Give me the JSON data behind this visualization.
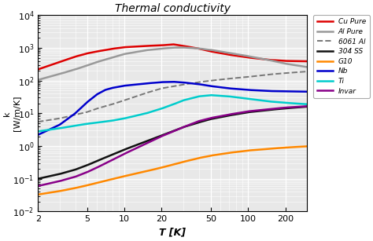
{
  "title": "Thermal conductivity",
  "xlabel": "T [K]",
  "ylabel": "k\n[W/m/K]",
  "xlim": [
    2,
    300
  ],
  "ylim": [
    0.01,
    10000
  ],
  "background_color": "#e8e8e8",
  "series": {
    "Cu Pure": {
      "color": "#dd0000",
      "linestyle": "-",
      "linewidth": 1.8,
      "T": [
        2,
        3,
        4,
        5,
        6,
        8,
        10,
        15,
        20,
        25,
        30,
        40,
        50,
        70,
        100,
        150,
        200,
        300
      ],
      "k": [
        220,
        370,
        540,
        680,
        780,
        940,
        1050,
        1150,
        1200,
        1280,
        1150,
        950,
        780,
        620,
        510,
        430,
        400,
        390
      ]
    },
    "Al Pure": {
      "color": "#999999",
      "linestyle": "-",
      "linewidth": 1.8,
      "T": [
        2,
        3,
        4,
        5,
        6,
        8,
        10,
        15,
        20,
        25,
        30,
        40,
        50,
        70,
        100,
        150,
        200,
        300
      ],
      "k": [
        105,
        160,
        220,
        290,
        370,
        510,
        650,
        850,
        950,
        1020,
        1030,
        960,
        870,
        700,
        560,
        420,
        330,
        260
      ]
    },
    "6061 Al": {
      "color": "#777777",
      "linestyle": "--",
      "linewidth": 1.4,
      "T": [
        2,
        3,
        4,
        5,
        6,
        8,
        10,
        15,
        20,
        30,
        40,
        50,
        70,
        100,
        150,
        200,
        300
      ],
      "k": [
        5.5,
        7.0,
        9.0,
        11.0,
        14.0,
        19.0,
        25.0,
        42.0,
        58.0,
        76.0,
        90.0,
        100.0,
        115.0,
        130.0,
        155.0,
        170.0,
        190.0
      ]
    },
    "304 SS": {
      "color": "#111111",
      "linestyle": "-",
      "linewidth": 1.8,
      "T": [
        2,
        3,
        4,
        5,
        6,
        8,
        10,
        15,
        20,
        30,
        40,
        50,
        70,
        100,
        150,
        200,
        300
      ],
      "k": [
        0.1,
        0.14,
        0.19,
        0.26,
        0.35,
        0.55,
        0.78,
        1.4,
        2.1,
        3.8,
        5.3,
        6.7,
        8.6,
        10.8,
        12.8,
        14.2,
        16.0
      ]
    },
    "G10": {
      "color": "#ff8800",
      "linestyle": "-",
      "linewidth": 1.8,
      "T": [
        2,
        3,
        4,
        5,
        6,
        8,
        10,
        15,
        20,
        30,
        40,
        50,
        70,
        100,
        150,
        200,
        300
      ],
      "k": [
        0.033,
        0.042,
        0.052,
        0.063,
        0.075,
        0.098,
        0.12,
        0.17,
        0.22,
        0.33,
        0.43,
        0.51,
        0.62,
        0.73,
        0.83,
        0.9,
        0.98
      ]
    },
    "Nb": {
      "color": "#0000cc",
      "linestyle": "-",
      "linewidth": 1.8,
      "T": [
        2,
        3,
        4,
        5,
        6,
        7,
        8,
        10,
        15,
        20,
        25,
        30,
        40,
        50,
        70,
        100,
        150,
        200,
        300
      ],
      "k": [
        2.2,
        4.5,
        10.0,
        22.0,
        38.0,
        52.0,
        60.0,
        70.0,
        82.0,
        90.0,
        92.0,
        88.0,
        78.0,
        68.0,
        58.0,
        52.0,
        48.0,
        47.0,
        46.0
      ]
    },
    "Ti": {
      "color": "#00cccc",
      "linestyle": "-",
      "linewidth": 1.8,
      "T": [
        2,
        3,
        4,
        5,
        6,
        8,
        10,
        15,
        20,
        25,
        30,
        40,
        50,
        70,
        100,
        150,
        200,
        300
      ],
      "k": [
        2.8,
        3.5,
        4.2,
        4.8,
        5.2,
        6.0,
        7.0,
        10.0,
        14.0,
        19.0,
        25.0,
        33.0,
        36.0,
        33.0,
        28.0,
        23.0,
        21.0,
        19.0
      ]
    },
    "Invar": {
      "color": "#880088",
      "linestyle": "-",
      "linewidth": 1.8,
      "T": [
        2,
        3,
        4,
        5,
        6,
        8,
        10,
        15,
        20,
        30,
        40,
        50,
        70,
        100,
        150,
        200,
        300
      ],
      "k": [
        0.06,
        0.085,
        0.115,
        0.16,
        0.22,
        0.38,
        0.58,
        1.2,
        2.0,
        3.8,
        5.8,
        7.2,
        9.2,
        11.5,
        13.5,
        15.0,
        16.5
      ]
    }
  }
}
